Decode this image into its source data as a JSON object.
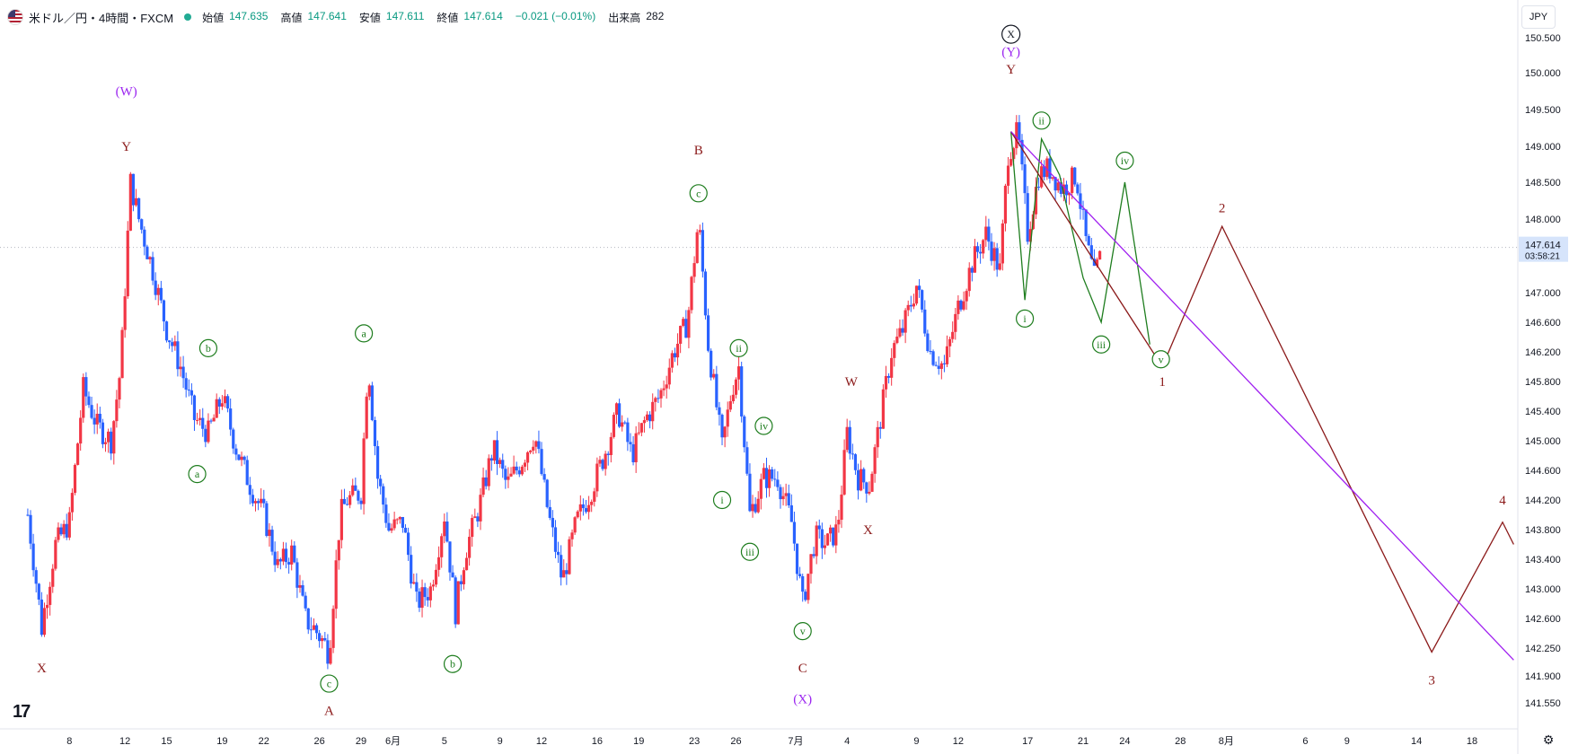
{
  "header": {
    "symbol": "米ドル／円・4時間・FXCM",
    "ohlc": [
      {
        "label": "始値",
        "value": "147.635"
      },
      {
        "label": "高値",
        "value": "147.641"
      },
      {
        "label": "安値",
        "value": "147.611"
      },
      {
        "label": "終値",
        "value": "147.614"
      },
      {
        "label": "",
        "value": "−0.021 (−0.01%)"
      },
      {
        "label": "出来高",
        "value": "282"
      }
    ]
  },
  "currency_label": "JPY",
  "colors": {
    "up": "#f23645",
    "down": "#2962ff",
    "wave_red": "#8b1a1a",
    "wave_green": "#1e7d1e",
    "wave_purple": "#9c27f0",
    "trend_purple": "#a020f0"
  },
  "chart_data": {
    "type": "candlestick",
    "title": "",
    "last_price": "147.614",
    "countdown": "03:58:21",
    "price_ticks": [
      "150.500",
      "150.000",
      "149.500",
      "149.000",
      "148.500",
      "148.000",
      "147.000",
      "146.600",
      "146.200",
      "145.800",
      "145.400",
      "145.000",
      "144.600",
      "144.200",
      "143.800",
      "143.400",
      "143.000",
      "142.600",
      "142.250",
      "141.900",
      "141.550"
    ],
    "date_ticks": [
      {
        "label": "8",
        "x": 8
      },
      {
        "label": "12",
        "x": 12
      },
      {
        "label": "15",
        "x": 15
      },
      {
        "label": "19",
        "x": 19
      },
      {
        "label": "22",
        "x": 22
      },
      {
        "label": "26",
        "x": 26
      },
      {
        "label": "29",
        "x": 29
      },
      {
        "label": "6月",
        "x": 31.3
      },
      {
        "label": "5",
        "x": 35
      },
      {
        "label": "9",
        "x": 39
      },
      {
        "label": "12",
        "x": 42
      },
      {
        "label": "16",
        "x": 46
      },
      {
        "label": "19",
        "x": 49
      },
      {
        "label": "23",
        "x": 53
      },
      {
        "label": "26",
        "x": 56
      },
      {
        "label": "7月",
        "x": 60.3
      },
      {
        "label": "4",
        "x": 64
      },
      {
        "label": "9",
        "x": 69
      },
      {
        "label": "12",
        "x": 72
      },
      {
        "label": "17",
        "x": 77
      },
      {
        "label": "21",
        "x": 81
      },
      {
        "label": "24",
        "x": 84
      },
      {
        "label": "28",
        "x": 88
      },
      {
        "label": "8月",
        "x": 91.3
      },
      {
        "label": "6",
        "x": 97
      },
      {
        "label": "9",
        "x": 100
      },
      {
        "label": "14",
        "x": 105
      },
      {
        "label": "18",
        "x": 109
      }
    ],
    "price_path": [
      [
        5,
        144.0
      ],
      [
        6,
        142.5
      ],
      [
        7,
        143.6
      ],
      [
        8,
        143.9
      ],
      [
        9,
        145.7
      ],
      [
        10,
        145.2
      ],
      [
        11,
        145.0
      ],
      [
        11.7,
        146.0
      ],
      [
        12.4,
        148.5
      ],
      [
        13,
        148.0
      ],
      [
        14,
        147.3
      ],
      [
        15,
        146.5
      ],
      [
        16,
        146.0
      ],
      [
        17,
        145.3
      ],
      [
        18,
        145.1
      ],
      [
        19,
        145.6
      ],
      [
        20,
        144.9
      ],
      [
        21,
        144.4
      ],
      [
        22,
        144.0
      ],
      [
        23,
        143.3
      ],
      [
        24,
        143.5
      ],
      [
        25,
        142.6
      ],
      [
        26,
        142.4
      ],
      [
        26.7,
        142.2
      ],
      [
        27.5,
        144.0
      ],
      [
        28,
        144.2
      ],
      [
        29,
        144.3
      ],
      [
        29.5,
        146.1
      ],
      [
        30.2,
        144.5
      ],
      [
        31,
        143.8
      ],
      [
        32,
        143.9
      ],
      [
        33,
        142.8
      ],
      [
        34,
        143.0
      ],
      [
        35,
        144.0
      ],
      [
        35.8,
        142.7
      ],
      [
        36.5,
        143.5
      ],
      [
        37.5,
        144.1
      ],
      [
        38.5,
        144.9
      ],
      [
        39.5,
        144.4
      ],
      [
        40.5,
        144.7
      ],
      [
        41.5,
        145.1
      ],
      [
        42.5,
        144.0
      ],
      [
        43.5,
        143.1
      ],
      [
        44.5,
        143.9
      ],
      [
        45.5,
        144.3
      ],
      [
        46.5,
        144.8
      ],
      [
        47.5,
        145.4
      ],
      [
        48.5,
        144.8
      ],
      [
        49.5,
        145.3
      ],
      [
        50.5,
        145.6
      ],
      [
        51.5,
        146.2
      ],
      [
        52.5,
        146.6
      ],
      [
        53.3,
        148.0
      ],
      [
        54,
        146.3
      ],
      [
        55,
        144.9
      ],
      [
        55.7,
        145.7
      ],
      [
        56.2,
        146.0
      ],
      [
        57,
        144.0
      ],
      [
        58,
        144.5
      ],
      [
        59,
        144.5
      ],
      [
        60,
        143.9
      ],
      [
        60.8,
        142.8
      ],
      [
        61.7,
        143.7
      ],
      [
        62.5,
        143.6
      ],
      [
        63.3,
        143.8
      ],
      [
        64,
        145.1
      ],
      [
        64.8,
        144.5
      ],
      [
        65.6,
        144.4
      ],
      [
        66.4,
        145.3
      ],
      [
        67.2,
        146.2
      ],
      [
        68,
        146.5
      ],
      [
        69,
        147.1
      ],
      [
        70,
        146.2
      ],
      [
        71,
        146.0
      ],
      [
        72,
        146.8
      ],
      [
        73,
        147.4
      ],
      [
        74,
        147.8
      ],
      [
        75,
        147.3
      ],
      [
        75.6,
        148.9
      ],
      [
        76.3,
        149.2
      ],
      [
        77,
        147.8
      ],
      [
        77.8,
        148.6
      ],
      [
        78.5,
        148.7
      ],
      [
        79.5,
        148.4
      ],
      [
        80.5,
        148.6
      ],
      [
        81.2,
        147.7
      ],
      [
        81.8,
        147.2
      ],
      [
        82.4,
        147.6
      ]
    ],
    "projections": [
      {
        "name": "",
        "color": "#1e7d1e",
        "points": [
          [
            75.8,
            149.2
          ],
          [
            76.8,
            146.9
          ],
          [
            78.0,
            149.1
          ],
          [
            79.3,
            148.6
          ],
          [
            81.0,
            147.2
          ],
          [
            82.3,
            146.6
          ],
          [
            84.0,
            148.5
          ],
          [
            85.8,
            146.3
          ]
        ]
      },
      {
        "name": "",
        "color": "#8b1a1a",
        "points": [
          [
            75.8,
            149.2
          ],
          [
            86.7,
            146.0
          ],
          [
            91.0,
            147.9
          ],
          [
            106.1,
            142.2
          ],
          [
            111.2,
            143.9
          ],
          [
            112,
            143.6
          ]
        ]
      },
      {
        "name": "",
        "color": "#a020f0",
        "points": [
          [
            75.8,
            149.2
          ],
          [
            112,
            142.1
          ]
        ]
      }
    ],
    "wave_labels": [
      {
        "text": "(W)",
        "x": 12.1,
        "y": 149.75,
        "color": "purple"
      },
      {
        "text": "Y",
        "x": 12.1,
        "y": 149.0,
        "color": "red"
      },
      {
        "text": "X",
        "x": 6.0,
        "y": 142.0,
        "color": "red"
      },
      {
        "text": "b",
        "x": 18.0,
        "y": 146.25,
        "color": "green",
        "circle": true
      },
      {
        "text": "a",
        "x": 17.2,
        "y": 144.55,
        "color": "green",
        "circle": true
      },
      {
        "text": "a",
        "x": 29.2,
        "y": 146.45,
        "color": "green",
        "circle": true
      },
      {
        "text": "c",
        "x": 26.7,
        "y": 141.8,
        "color": "green",
        "circle": true
      },
      {
        "text": "A",
        "x": 26.7,
        "y": 141.45,
        "color": "red"
      },
      {
        "text": "b",
        "x": 35.6,
        "y": 142.05,
        "color": "green",
        "circle": true
      },
      {
        "text": "B",
        "x": 53.3,
        "y": 148.95,
        "color": "red"
      },
      {
        "text": "c",
        "x": 53.3,
        "y": 148.35,
        "color": "green",
        "circle": true
      },
      {
        "text": "ii",
        "x": 56.2,
        "y": 146.25,
        "color": "green",
        "circle": true
      },
      {
        "text": "i",
        "x": 55.0,
        "y": 144.2,
        "color": "green",
        "circle": true
      },
      {
        "text": "iv",
        "x": 58.0,
        "y": 145.2,
        "color": "green",
        "circle": true
      },
      {
        "text": "iii",
        "x": 57.0,
        "y": 143.5,
        "color": "green",
        "circle": true
      },
      {
        "text": "v",
        "x": 60.8,
        "y": 142.45,
        "color": "green",
        "circle": true
      },
      {
        "text": "C",
        "x": 60.8,
        "y": 142.0,
        "color": "red"
      },
      {
        "text": "(X)",
        "x": 60.8,
        "y": 141.6,
        "color": "purple"
      },
      {
        "text": "W",
        "x": 64.3,
        "y": 145.8,
        "color": "red"
      },
      {
        "text": "X",
        "x": 65.5,
        "y": 143.8,
        "color": "red"
      },
      {
        "text": "X",
        "x": 75.8,
        "y": 150.55,
        "color": "black",
        "circle": true
      },
      {
        "text": "(Y)",
        "x": 75.8,
        "y": 150.3,
        "color": "purple"
      },
      {
        "text": "Y",
        "x": 75.8,
        "y": 150.05,
        "color": "red"
      },
      {
        "text": "ii",
        "x": 78.0,
        "y": 149.35,
        "color": "green",
        "circle": true
      },
      {
        "text": "i",
        "x": 76.8,
        "y": 146.65,
        "color": "green",
        "circle": true
      },
      {
        "text": "iv",
        "x": 84.0,
        "y": 148.8,
        "color": "green",
        "circle": true
      },
      {
        "text": "iii",
        "x": 82.3,
        "y": 146.3,
        "color": "green",
        "circle": true
      },
      {
        "text": "v",
        "x": 86.6,
        "y": 146.1,
        "color": "green",
        "circle": true
      },
      {
        "text": "1",
        "x": 86.7,
        "y": 145.8,
        "color": "red"
      },
      {
        "text": "2",
        "x": 91.0,
        "y": 148.15,
        "color": "red"
      },
      {
        "text": "3",
        "x": 106.1,
        "y": 141.85,
        "color": "red"
      },
      {
        "text": "4",
        "x": 111.2,
        "y": 144.2,
        "color": "red"
      }
    ]
  }
}
